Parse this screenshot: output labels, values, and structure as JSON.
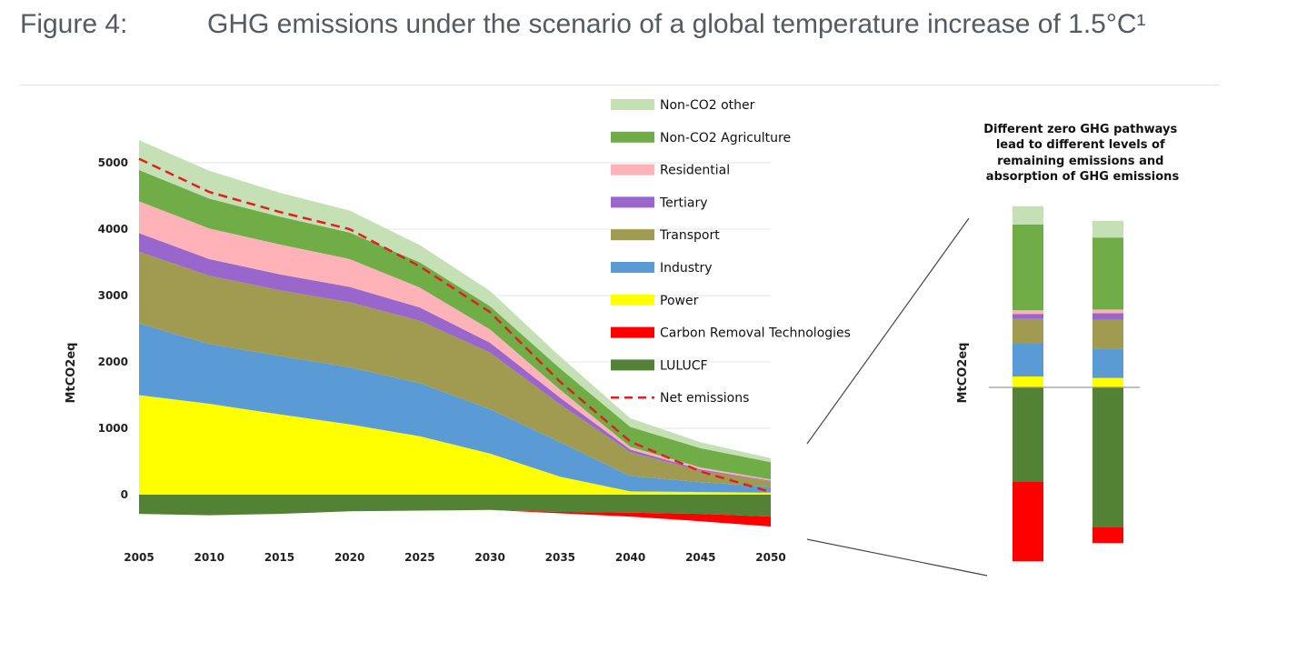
{
  "figure": {
    "label": "Figure 4:",
    "title": "GHG emissions under the scenario of a global temperature increase of 1.5°C¹"
  },
  "chart_data": [
    {
      "type": "area",
      "subtype": "stacked-area",
      "ylabel": "MtCO2eq",
      "xlabel": "",
      "x": [
        2005,
        2010,
        2015,
        2020,
        2025,
        2030,
        2035,
        2040,
        2045,
        2050
      ],
      "x_tick_labels": [
        "2005",
        "2010",
        "2015",
        "2020",
        "2025",
        "2030",
        "2035",
        "2040",
        "2045",
        "2050"
      ],
      "y_ticks": [
        0,
        1000,
        2000,
        3000,
        4000,
        5000
      ],
      "y_tick_labels": [
        "0",
        "1000",
        "2000",
        "3000",
        "4000",
        "5000"
      ],
      "ylim": [
        -500,
        5400
      ],
      "grid": "horizontal",
      "legend_position": "right",
      "positive_series": [
        {
          "name": "Power",
          "color": "#ffff00",
          "values": [
            1500,
            1370,
            1210,
            1060,
            880,
            620,
            270,
            50,
            40,
            30
          ]
        },
        {
          "name": "Industry",
          "color": "#5b9bd5",
          "values": [
            1080,
            900,
            880,
            860,
            800,
            670,
            520,
            230,
            150,
            90
          ]
        },
        {
          "name": "Transport",
          "color": "#a09b50",
          "values": [
            1080,
            1030,
            990,
            980,
            940,
            850,
            570,
            360,
            170,
            80
          ]
        },
        {
          "name": "Tertiary",
          "color": "#9966cc",
          "values": [
            280,
            250,
            240,
            230,
            200,
            150,
            100,
            40,
            20,
            10
          ]
        },
        {
          "name": "Residential",
          "color": "#ffb3b8",
          "values": [
            480,
            460,
            450,
            420,
            300,
            200,
            120,
            40,
            30,
            20
          ]
        },
        {
          "name": "Non-CO2 Agriculture",
          "color": "#70ad47",
          "values": [
            470,
            450,
            420,
            400,
            380,
            350,
            320,
            300,
            290,
            260
          ]
        },
        {
          "name": "Non-CO2 other",
          "color": "#c5e0b4",
          "values": [
            450,
            420,
            360,
            330,
            260,
            230,
            180,
            130,
            90,
            60
          ]
        }
      ],
      "negative_series": [
        {
          "name": "LULUCF",
          "color": "#548235",
          "values": [
            -290,
            -310,
            -290,
            -250,
            -240,
            -230,
            -260,
            -270,
            -290,
            -330
          ]
        },
        {
          "name": "Carbon Removal Technologies",
          "color": "#ff0000",
          "values": [
            0,
            0,
            0,
            0,
            0,
            0,
            -20,
            -60,
            -110,
            -150
          ]
        }
      ],
      "net_emissions": {
        "name": "Net emissions",
        "color": "#e02020",
        "style": "dashed",
        "values": [
          5060,
          4560,
          4260,
          4000,
          3440,
          2750,
          1700,
          800,
          350,
          40
        ]
      },
      "legend": [
        {
          "name": "Non-CO2 other",
          "color": "#c5e0b4",
          "kind": "bar"
        },
        {
          "name": "Non-CO2 Agriculture",
          "color": "#70ad47",
          "kind": "bar"
        },
        {
          "name": "Residential",
          "color": "#ffb3b8",
          "kind": "bar"
        },
        {
          "name": "Tertiary",
          "color": "#9966cc",
          "kind": "bar"
        },
        {
          "name": "Transport",
          "color": "#a09b50",
          "kind": "bar"
        },
        {
          "name": "Industry",
          "color": "#5b9bd5",
          "kind": "bar"
        },
        {
          "name": "Power",
          "color": "#ffff00",
          "kind": "bar"
        },
        {
          "name": "Carbon Removal Technologies",
          "color": "#ff0000",
          "kind": "bar"
        },
        {
          "name": "LULUCF",
          "color": "#548235",
          "kind": "bar"
        },
        {
          "name": "Net emissions",
          "color": "#e02020",
          "kind": "dash"
        }
      ]
    },
    {
      "type": "bar",
      "subtype": "stacked-bar",
      "ylabel": "MtCO2eq",
      "annotation": [
        "Different zero GHG pathways",
        "lead to different levels of",
        "remaining emissions and",
        "absorption of GHG emissions"
      ],
      "categories": [
        "",
        ""
      ],
      "positive_series": [
        {
          "name": "Power",
          "color": "#ffff00",
          "values": [
            75,
            65
          ]
        },
        {
          "name": "Industry",
          "color": "#5b9bd5",
          "values": [
            225,
            200
          ]
        },
        {
          "name": "Transport",
          "color": "#a09b50",
          "values": [
            170,
            200
          ]
        },
        {
          "name": "Tertiary",
          "color": "#9966cc",
          "values": [
            35,
            45
          ]
        },
        {
          "name": "Residential",
          "color": "#ffb3b8",
          "values": [
            25,
            25
          ]
        },
        {
          "name": "Non-CO2 Agriculture",
          "color": "#70ad47",
          "values": [
            590,
            495
          ]
        },
        {
          "name": "Non-CO2 other",
          "color": "#c5e0b4",
          "values": [
            125,
            115
          ]
        }
      ],
      "negative_series": [
        {
          "name": "LULUCF",
          "color": "#548235",
          "values": [
            -650,
            -960
          ]
        },
        {
          "name": "Carbon Removal Technologies",
          "color": "#ff0000",
          "values": [
            -545,
            -110
          ]
        }
      ]
    }
  ]
}
